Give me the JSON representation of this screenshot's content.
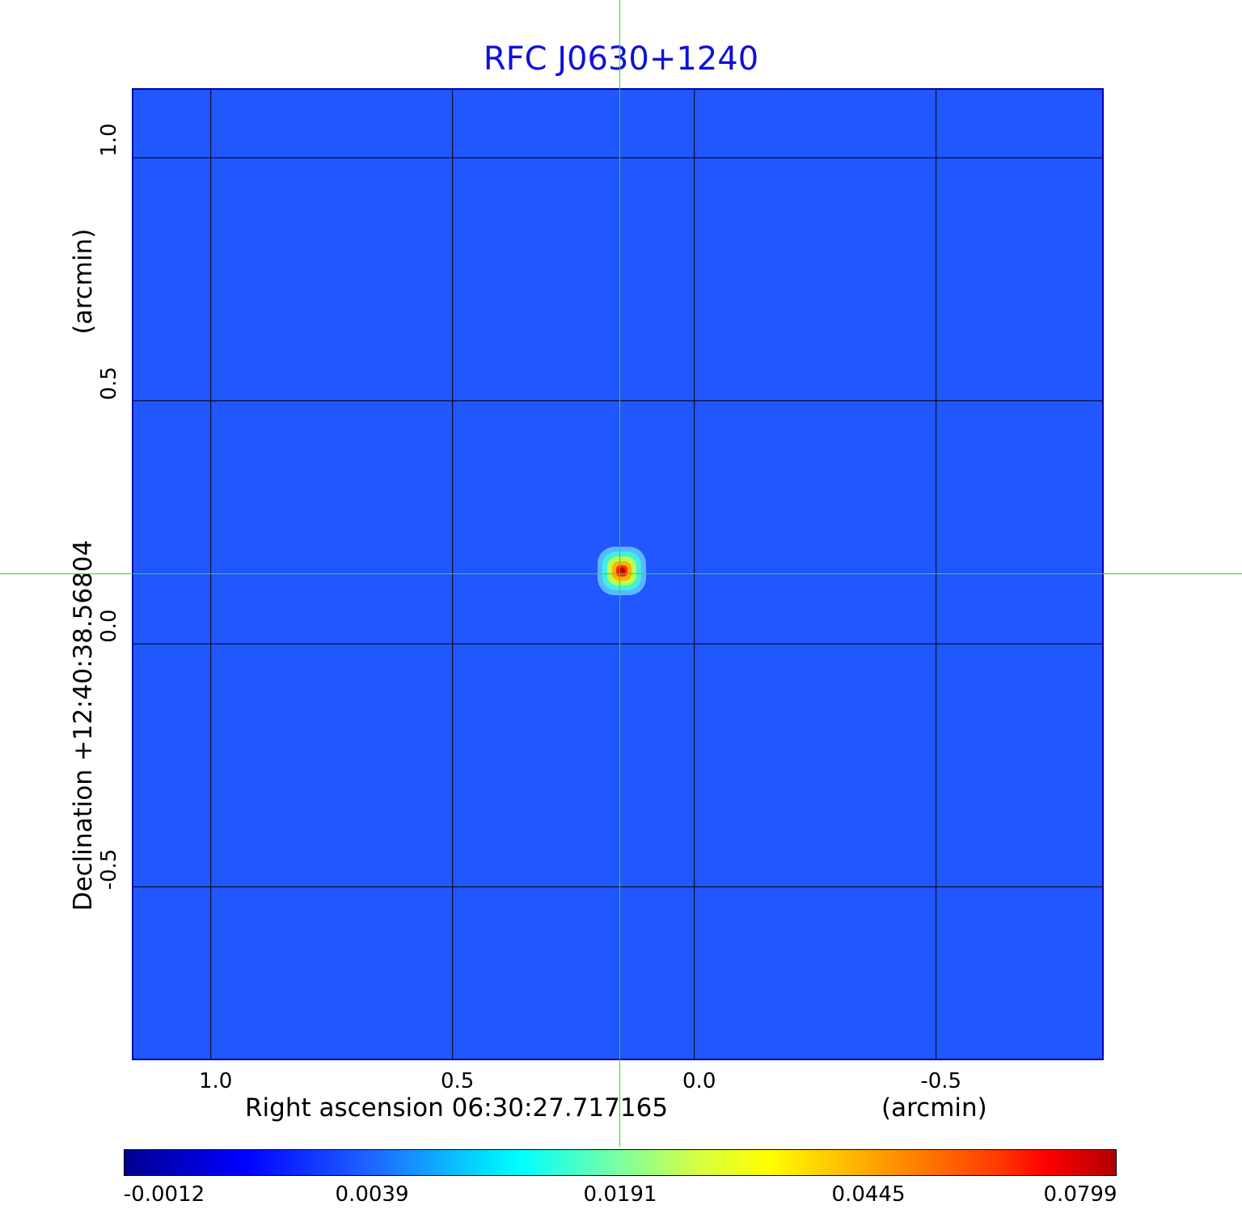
{
  "chart_data": {
    "type": "heatmap",
    "title": "RFC J0630+1240",
    "xlabel": "Right ascension  06:30:27.717165",
    "xunit": "(arcmin)",
    "ylabel": "Declination  +12:40:38.56804",
    "yunit": "(arcmin)",
    "xlim": [
      1.16,
      -0.85
    ],
    "ylim": [
      -0.86,
      1.14
    ],
    "xticks": [
      "1.0",
      "0.5",
      "0.0",
      "-0.5"
    ],
    "xtick_values": [
      1.0,
      0.5,
      0.0,
      -0.5
    ],
    "yticks": [
      "1.0",
      "0.5",
      "0.0",
      "-0.5"
    ],
    "ytick_values": [
      1.0,
      0.5,
      0.0,
      -0.5
    ],
    "grid": true,
    "source": {
      "ra_offset_arcmin": 0.15,
      "dec_offset_arcmin": 0.15,
      "peak_value": 0.0799
    },
    "crosshair": {
      "ra_offset_arcmin": 0.15,
      "dec_offset_arcmin": 0.143
    },
    "colorbar": {
      "ticks": [
        "-0.0012",
        "0.0039",
        "0.0191",
        "0.0445",
        "0.0799"
      ],
      "colormap": "jet",
      "background_color": "#2157ff"
    }
  }
}
